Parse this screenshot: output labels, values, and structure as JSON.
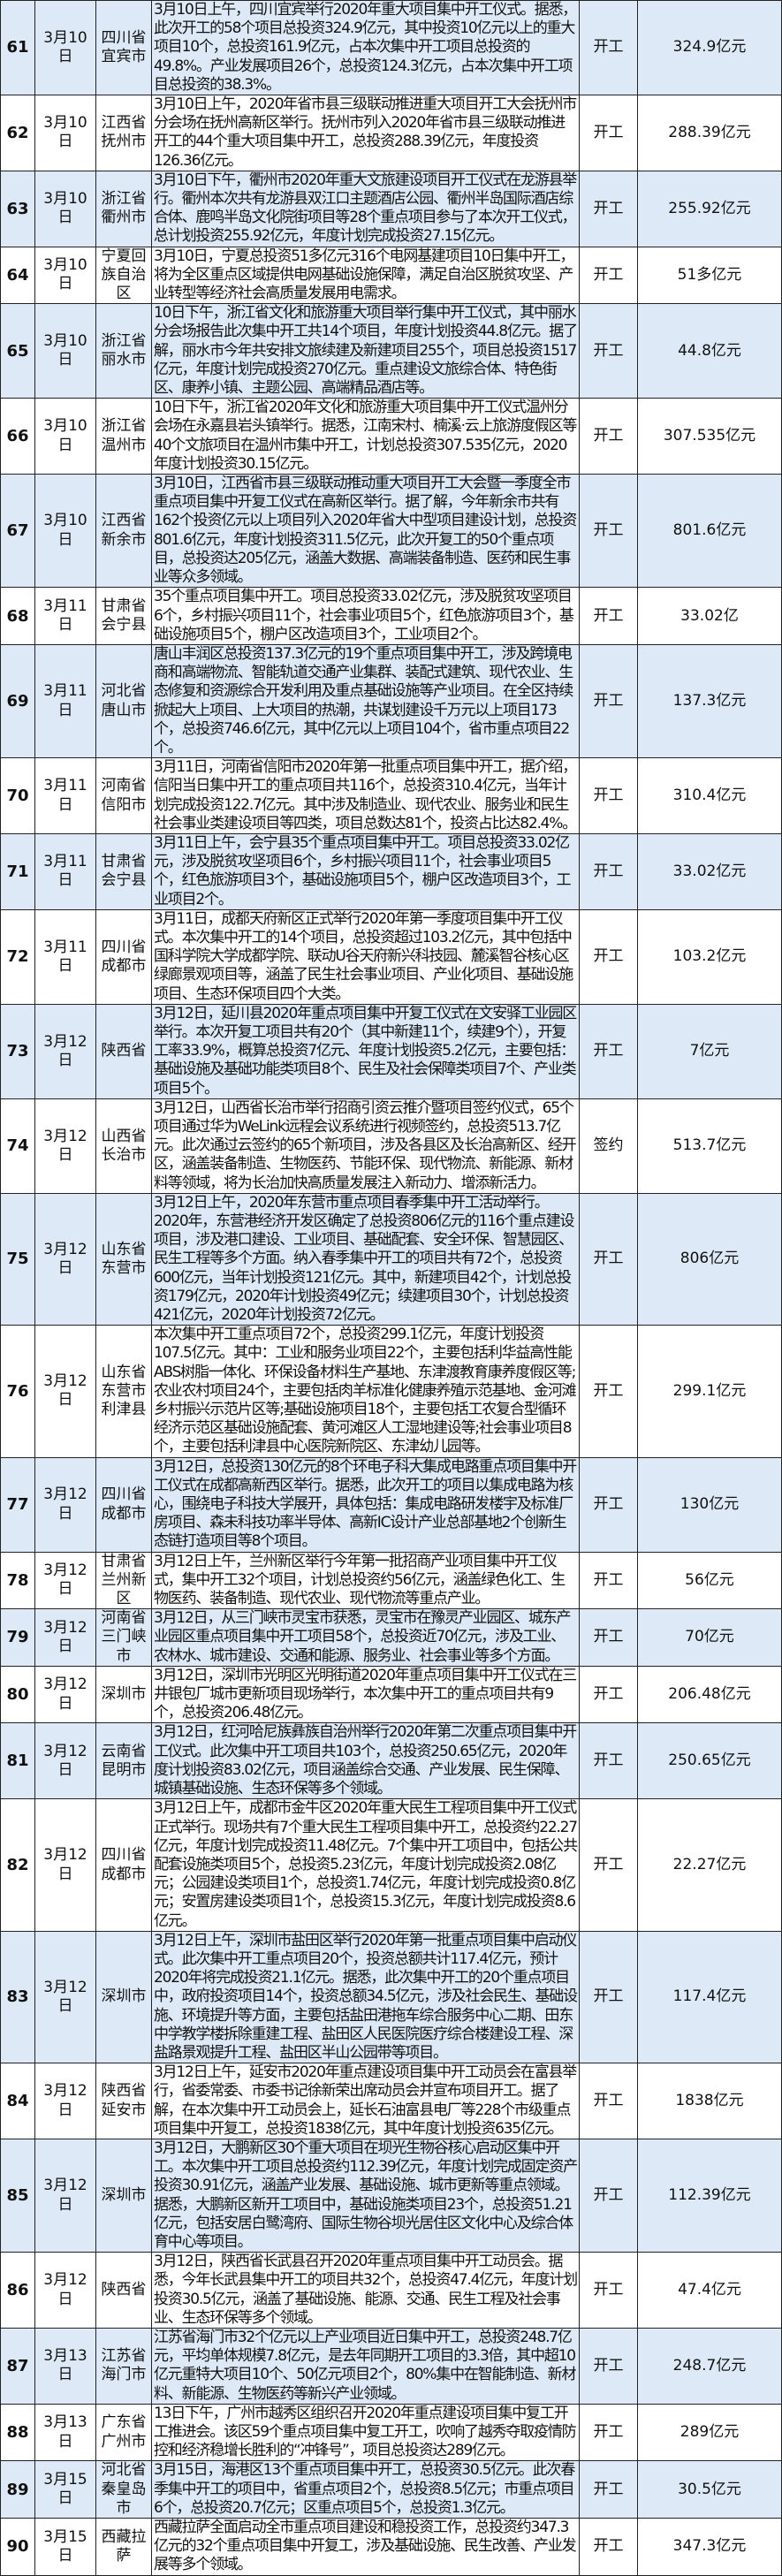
{
  "rows": [
    {
      "no": "61",
      "date": "3月10日",
      "region": "四川省宜宾市",
      "content": "3月10日上午，四川宜宾举行2020年重大项目集中开工仪式。据悉，此次开工的58个项目总投资324.9亿元，其中投资10亿元以上的重大项目10个，总投资161.9亿元，占本次集中开工项目总投资的49.8%。产业发展项目26个，总投资124.3亿元，占本次集中开工项目总投资的38.3%。",
      "type": "开工",
      "amount": "324.9亿元"
    },
    {
      "no": "62",
      "date": "3月10日",
      "region": "江西省抚州市",
      "content": "3月10日上午，2020年省市县三级联动推进重大项目开工大会抚州市分会场在抚州高新区举行。抚州市列入2020年省市县三级联动推进开工的44个重大项目集中开工，总投资288.39亿元，年度投资126.36亿元。",
      "type": "开工",
      "amount": "288.39亿元"
    },
    {
      "no": "63",
      "date": "3月10日",
      "region": "浙江省衢州市",
      "content": "3月10日下午，衢州市2020年重大文旅建设项目开工仪式在龙游县举行。衢州本次共有龙游县双江口主题酒店公园、衢州半岛国际酒店综合体、鹿鸣半岛文化院街项目等28个重点项目参与了本次开工仪式，总计划投资255.92亿元，年度计划完成投资27.15亿元。",
      "type": "开工",
      "amount": "255.92亿元"
    },
    {
      "no": "64",
      "date": "3月10日",
      "region": "宁夏回族自治区",
      "content": "3月10日，宁夏总投资51多亿元316个电网基建项目10日集中开工，将为全区重点区域提供电网基础设施保障，满足自治区脱贫攻坚、产业转型等经济社会高质量发展用电需求。",
      "type": "开工",
      "amount": "51多亿元"
    },
    {
      "no": "65",
      "date": "3月10日",
      "region": "浙江省丽水市",
      "content": "10日下午，浙江省文化和旅游重大项目举行集中开工仪式，其中丽水分会场报告此次集中开工共14个项目，年度计划投资44.8亿元。据了解，丽水市今年共安排文旅续建及新建项目255个，项目总投资1517亿元，年度计划完成投资270亿元。重点建设文旅综合体、特色街区、康养小镇、主题公园、高端精品酒店等。",
      "type": "开工",
      "amount": "44.8亿元"
    },
    {
      "no": "66",
      "date": "3月10日",
      "region": "浙江省温州市",
      "content": "10日下午，浙江省2020年文化和旅游重大项目集中开工仪式温州分会场在永嘉县岩头镇举行。据悉，江南宋村、楠溪·云上旅游度假区等40个文旅项目在温州市集中开工，计划总投资307.535亿元，2020年度计划投资30.15亿元。",
      "type": "开工",
      "amount": "307.535亿元"
    },
    {
      "no": "67",
      "date": "3月10日",
      "region": "江西省新余市",
      "content": "3月10日，江西省市县三级联动推动重大项目开工大会暨一季度全市重点项目集中开复工仪式在高新区举行。据了解，今年新余市共有162个投资亿元以上项目列入2020年省大中型项目建设计划，总投资801.6亿元，年度计划投资311.5亿元，此次开复工的50个重点项目，总投资达205亿元，涵盖大数据、高端装备制造、医药和民生事业等众多领域。",
      "type": "开工",
      "amount": "801.6亿元"
    },
    {
      "no": "68",
      "date": "3月11日",
      "region": "甘肃省会宁县",
      "content": "35个重点项目集中开工。项目总投资33.02亿元，涉及脱贫攻坚项目6个，乡村振兴项目11个，社会事业项目5个，红色旅游项目3个，基础设施项目5个，棚户区改造项目3个，工业项目2个。",
      "type": "开工",
      "amount": "33.02亿"
    },
    {
      "no": "69",
      "date": "3月11日",
      "region": "河北省唐山市",
      "content": "唐山丰润区总投资137.3亿元的19个重点项目集中开工，涉及跨境电商和高端物流、智能轨道交通产业集群、装配式建筑、现代农业、生态修复和资源综合开发利用及重点基础设施等产业项目。在全区持续掀起大上项目、上大项目的热潮，共谋划建设千万元以上项目173个，总投资746.6亿元，其中亿元以上项目104个，省市重点项目22个。",
      "type": "开工",
      "amount": "137.3亿元"
    },
    {
      "no": "70",
      "date": "3月11日",
      "region": "河南省信阳市",
      "content": "3月11日，河南省信阳市2020年第一批重点项目集中开工，据介绍，信阳当日集中开工的重点项目共116个，总投资310.4亿元，当年计划完成投资122.7亿元。其中涉及制造业、现代农业、服务业和民生社会事业类建设项目等四类，项目总数达81个，投资占比达82.4%。",
      "type": "开工",
      "amount": "310.4亿元"
    },
    {
      "no": "71",
      "date": "3月11日",
      "region": "甘肃省会宁县",
      "content": "3月11日上午，会宁县35个重点项目集中开工。项目总投资33.02亿元，涉及脱贫攻坚项目6个，乡村振兴项目11个，社会事业项目5个，红色旅游项目3个，基础设施项目5个，棚户区改造项目3个，工业项目2个。",
      "type": "开工",
      "amount": "33.02亿元"
    },
    {
      "no": "72",
      "date": "3月11日",
      "region": "四川省成都市",
      "content": "3月11日，成都天府新区正式举行2020年第一季度项目集中开工仪式。本次集中开工的14个项目，总投资超过103.2亿元，其中包括中国科学院大学成都学院、联动U谷天府新兴科技园、麓溪智谷核心区绿廊景观项目等，涵盖了民生社会事业项目、产业化项目、基础设施项目、生态环保项目四个大类。",
      "type": "开工",
      "amount": "103.2亿元"
    },
    {
      "no": "73",
      "date": "3月12日",
      "region": "陕西省",
      "content": "3月12日，延川县2020年重点项目集中开复工仪式在文安驿工业园区举行。本次开复工项目共有20个（其中新建11个，续建9个），开复工率33.9%，概算总投资7亿元、年度计划投资5.2亿元，主要包括：基础设施及基础功能类项目8个、民生及社会保障类项目7个、产业类项目5个。",
      "type": "开工",
      "amount": "7亿元"
    },
    {
      "no": "74",
      "date": "3月12日",
      "region": "山西省长治市",
      "content": "3月12日，山西省长治市举行招商引资云推介暨项目签约仪式，65个项目通过华为WeLink远程会议系统进行视频签约，总投资513.7亿元。此次通过云签约的65个新项目，涉及各县区及长治高新区、经开区，涵盖装备制造、生物医药、节能环保、现代物流、新能源、新材料等领域，将为长治加快高质量发展注入新动力、增添新活力。",
      "type": "签约",
      "amount": "513.7亿元"
    },
    {
      "no": "75",
      "date": "3月12日",
      "region": "山东省东营市",
      "content": "3月12日上午，2020年东营市重点项目春季集中开工活动举行。2020年，东营港经济开发区确定了总投资806亿元的116个重点建设项目，涉及港口建设、工业项目、基础配套、安全环保、智慧园区、民生工程等多个方面。纳入春季集中开工的项目共有72个，总投资600亿元，当年计划投资121亿元。其中，新建项目42个，计划总投资179亿元，2020年计划投资49亿元；续建项目30个，计划总投资421亿元，2020年计划投资72亿元。",
      "type": "开工",
      "amount": "806亿元"
    },
    {
      "no": "76",
      "date": "3月12日",
      "region": "山东省东营市利津县",
      "content": "本次集中开工重点项目72个，总投资299.1亿元，年度计划投资107.5亿元。其中：工业和服务业项目22个，主要包括利华益高性能ABS树脂一体化、环保设备材料生产基地、东津渡教育康养度假区等;农业农村项目24个，主要包括肉羊标准化健康养殖示范基地、金河滩乡村振兴示范片区等;基础设施项目18个，主要包括工农复合型循环经济示范区基础设施配套、黄河滩区人工湿地建设等;社会事业项目8个，主要包括利津县中心医院新院区、东津幼儿园等。",
      "type": "开工",
      "amount": "299.1亿元"
    },
    {
      "no": "77",
      "date": "3月12日",
      "region": "四川省成都市",
      "content": "3月12日，总投资130亿元的8个环电子科大集成电路重点项目集中开工仪式在成都高新西区举行。据悉，此次开工的项目以集成电路为核心，围绕电子科技大学展开，具体包括：集成电路研发楼宇及标准厂房项目、森未科技功率半导体、高新IC设计产业总部基地2个创新生态链打造项目等8个项目。",
      "type": "开工",
      "amount": "130亿元"
    },
    {
      "no": "78",
      "date": "3月12日",
      "region": "甘肃省兰州新区",
      "content": "3月12日上午，兰州新区举行今年第一批招商产业项目集中开工仪式，集中开工32个项目，计划总投资约56亿元，涵盖绿色化工、生物医药、装备制造、现代农业、现代物流等重点产业。",
      "type": "开工",
      "amount": "56亿元"
    },
    {
      "no": "79",
      "date": "3月12日",
      "region": "河南省三门峡市",
      "content": "3月12日，从三门峡市灵宝市获悉，灵宝市在豫灵产业园区、城东产业园区重点项目集中开工项目58个，总投资近70亿元，涉及工业、农林水、城市建设、交通和能源、服务业、社会事业等多个方面。",
      "type": "开工",
      "amount": "70亿元"
    },
    {
      "no": "80",
      "date": "3月12日",
      "region": "深圳市",
      "content": "3月12日，深圳市光明区光明街道2020年重点项目集中开工仪式在三井银包厂城市更新项目现场举行，本次集中开工的重点项目共有9个，总投资206.48亿元。",
      "type": "开工",
      "amount": "206.48亿元"
    },
    {
      "no": "81",
      "date": "3月12日",
      "region": "云南省昆明市",
      "content": "3月12日，红河哈尼族彝族自治州举行2020年第二次重点项目集中开工仪式。此次集中开工项目共103个，总投资250.65亿元，2020年度计划投资83.02亿元，项目涵盖综合交通、产业发展、民生保障、城镇基础设施、生态环保等多个领域。",
      "type": "开工",
      "amount": "250.65亿元"
    },
    {
      "no": "82",
      "date": "3月12日",
      "region": "四川省成都市",
      "content": "3月12日上午，成都市金牛区2020年重大民生工程项目集中开工仪式正式举行。现场共有7个重大民生工程项目集中开工，总投资约22.27亿元，年度计划完成投资11.48亿元。7个集中开工项目中，包括公共配套设施类项目5个，总投资5.23亿元，年度计划完成投资2.08亿元；公园建设类项目1个，总投资1.74亿元，年度计划完成投资0.8亿元；安置房建设类项目1个，总投资15.3亿元，年度计划完成投资8.6亿元。",
      "type": "开工",
      "amount": "22.27亿元"
    },
    {
      "no": "83",
      "date": "3月12日",
      "region": "深圳市",
      "content": "3月12日上午，深圳市盐田区举行2020年第一批重点项目集中启动仪式。此次集中开工重点项目20个，投资总额共计117.4亿元，预计2020年将完成投资21.1亿元。据悉，此次集中开工的20个重点项目中，政府投资项目14个，投资总额34.5亿元，涉及社会民生、基础设施、环境提升等方面，主要包括盐田港拖车综合服务中心二期、田东中学教学楼拆除重建工程、盐田区人民医院医疗综合楼建设工程、深盐路景观提升工程、盐田区半山公园带等项目。",
      "type": "开工",
      "amount": "117.4亿元"
    },
    {
      "no": "84",
      "date": "3月12日",
      "region": "陕西省延安市",
      "content": "3月12日上午，延安市2020年重点建设项目集中开工动员会在富县举行，省委常委、市委书记徐新荣出席动员会并宣布项目开工。据了解，在本次集中开工动员会上，延长石油富县电厂等228个市级重点项目集中开复工，总投资1838亿元，其中年度计划投资635亿元。",
      "type": "开工",
      "amount": "1838亿元"
    },
    {
      "no": "85",
      "date": "3月12日",
      "region": "深圳市",
      "content": "3月12日，大鹏新区30个重大项目在坝光生物谷核心启动区集中开工。本次集中开工项目总投资约112.39亿元，年度计划完成固定资产投资30.91亿元，涵盖产业发展、基础设施、城市更新等重点领域。据悉，大鹏新区新开工项目中，基础设施类项目23个，总投资51.21亿元，包括安居白鹭湾府、国际生物谷坝光居住区文化中心及综合体育中心等项目。",
      "type": "开工",
      "amount": "112.39亿元"
    },
    {
      "no": "86",
      "date": "3月12日",
      "region": "陕西省",
      "content": "3月12日，陕西省长武县召开2020年重点项目集中开工动员会。据悉，今年长武县集中开工的项目共32个，总投资47.4亿元，年度计划投资30.5亿元，涵盖了基础设施、能源、交通、民生工程及社会事业、生态环保等多个领域。",
      "type": "开工",
      "amount": "47.4亿元"
    },
    {
      "no": "87",
      "date": "3月13日",
      "region": "江苏省海门市",
      "content": "江苏省海门市32个亿元以上产业项目近日集中开工，总投资248.7亿元，平均单体规模7.8亿元，是去年同期开工项目的3.3倍，其中超10亿元重特大项目10个、50亿元项目2个，80%集中在智能制造、新材料、新能源、生物医药等新兴产业领域。",
      "type": "开工",
      "amount": "248.7亿元"
    },
    {
      "no": "88",
      "date": "3月13日",
      "region": "广东省广州市",
      "content": "13日下午，广州市越秀区组织召开2020年重点建设项目集中复工开工推进会。该区59个重点项目集中复工开工，吹响了越秀夺取疫情防控和经济稳增长胜利的“冲锋号”，项目总投资达289亿元。",
      "type": "开工",
      "amount": "289亿元"
    },
    {
      "no": "89",
      "date": "3月15日",
      "region": "河北省秦皇岛市",
      "content": "3月15日，海港区13个重点项目集中开工，总投资30.5亿元。此次春季集中开工的项目中，省重点项目2个，总投资8.5亿元；市重点项目6个，总投资20.7亿元；区重点项目5个，总投资1.3亿元。",
      "type": "开工",
      "amount": "30.5亿元"
    },
    {
      "no": "90",
      "date": "3月15日",
      "region": "西藏拉萨",
      "content": "西藏拉萨全面启动全市重点项目建设和稳投资工作，总投资约347.3亿元的32个重点项目集中开复工，涉及基础设施、民生改善、产业发展等多个领域。",
      "type": "开工",
      "amount": "347.3亿元"
    }
  ],
  "colors": {
    "row_alt": "#dde9f6",
    "border": "#222222"
  }
}
